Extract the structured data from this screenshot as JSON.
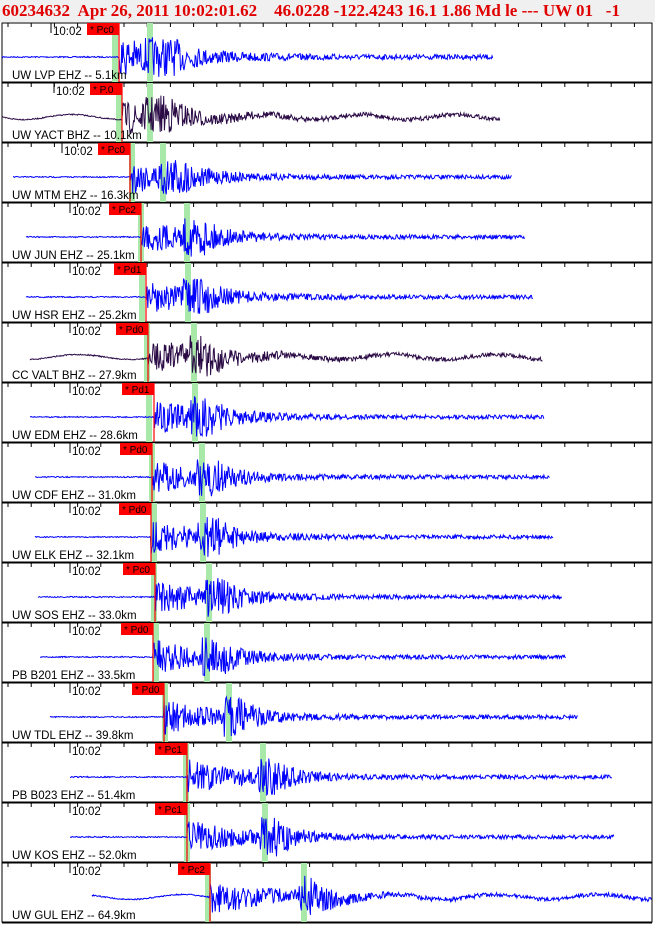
{
  "header": {
    "title": "60234632  Apr 26, 2011 10:02:01.62    46.0228 -122.4243 16.1 1.86 Md le --- UW 01   -1"
  },
  "chart_data": {
    "type": "line",
    "title": "60234632  Apr 26, 2011 10:02:01.62    46.0228 -122.4243 16.1 1.86 Md le --- UW 01   -1",
    "time_label": "10:02",
    "colors": {
      "ehz": "#0000ff",
      "bhz": "#2a0a45",
      "pick": "#ff0000",
      "window": "#a8e8a8"
    },
    "traces": [
      {
        "label": "UW LVP EHZ -- 5.1km",
        "pick": "* Pc0",
        "channel": "EHZ"
      },
      {
        "label": "UW YACT BHZ -- 10.1km",
        "pick": "* P.0",
        "channel": "BHZ"
      },
      {
        "label": "UW MTM EHZ -- 16.3km",
        "pick": "* Pc0",
        "channel": "EHZ"
      },
      {
        "label": "UW JUN EHZ -- 25.1km",
        "pick": "* Pc2",
        "channel": "EHZ"
      },
      {
        "label": "UW HSR EHZ -- 25.2km",
        "pick": "* Pd1",
        "channel": "EHZ"
      },
      {
        "label": "CC VALT BHZ -- 27.9km",
        "pick": "* Pd0",
        "channel": "BHZ"
      },
      {
        "label": "UW EDM EHZ -- 28.6km",
        "pick": "* Pd1",
        "channel": "EHZ"
      },
      {
        "label": "UW CDF EHZ -- 31.0km",
        "pick": "* Pd0",
        "channel": "EHZ"
      },
      {
        "label": "UW ELK EHZ -- 32.1km",
        "pick": "* Pd0",
        "channel": "EHZ"
      },
      {
        "label": "UW SOS EHZ -- 33.0km",
        "pick": "* Pc0",
        "channel": "EHZ"
      },
      {
        "label": "PB B201 EHZ -- 33.5km",
        "pick": "* Pd0",
        "channel": "EHZ"
      },
      {
        "label": "UW TDL EHZ -- 39.8km",
        "pick": "* Pd0",
        "channel": "EHZ"
      },
      {
        "label": "PB B023 EHZ -- 51.4km",
        "pick": "* Pc1",
        "channel": "EHZ"
      },
      {
        "label": "UW KOS EHZ -- 52.0km",
        "pick": "* Pc1",
        "channel": "EHZ"
      },
      {
        "label": "UW GUL EHZ -- 64.9km",
        "pick": "* Pc2",
        "channel": "EHZ"
      }
    ]
  }
}
